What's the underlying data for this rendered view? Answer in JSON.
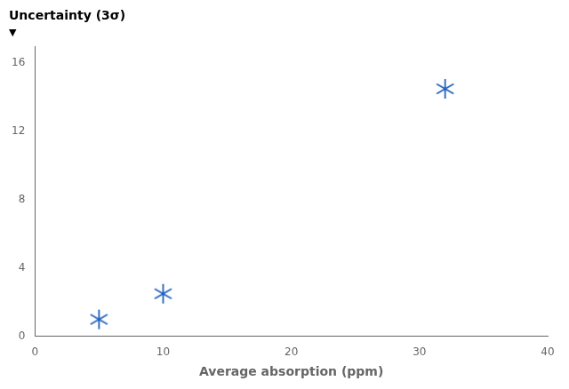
{
  "chart_data": {
    "type": "scatter",
    "x_label": "Average absorption (ppm)",
    "y_label": "Uncertainty (3σ)",
    "annotations": [
      "▼"
    ],
    "x": [
      5,
      10,
      32
    ],
    "values": [
      1.0,
      2.5,
      14.5
    ],
    "color": "#2060c0",
    "marker": "asterisk",
    "xlim": [
      0,
      40
    ],
    "xticks": [
      0,
      10,
      20,
      30,
      40
    ],
    "ylim": [
      0,
      17
    ],
    "yticks": [
      0,
      4,
      8,
      12,
      16
    ],
    "grid": false
  }
}
